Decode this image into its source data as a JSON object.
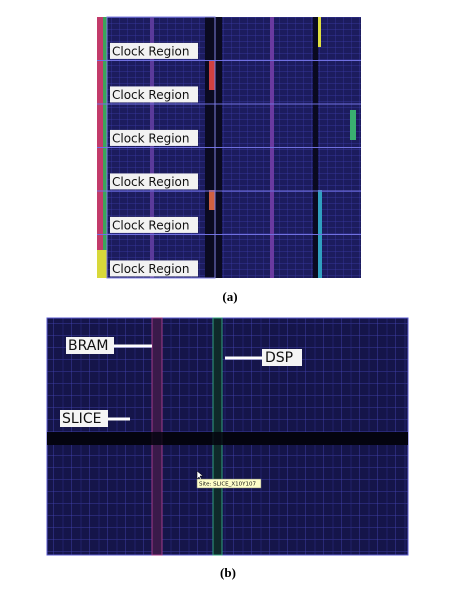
{
  "figure": {
    "panels": [
      {
        "labels": [
          "Clock Region",
          "Clock Region",
          "Clock Region",
          "Clock Region",
          "Clock Region",
          "Clock Region"
        ],
        "caption": "(a)"
      },
      {
        "labels": {
          "bram": "BRAM",
          "dsp": "DSP",
          "slice": "SLICE"
        },
        "tooltip": "Site: SLICE_X10Y107",
        "caption": "(b)"
      }
    ]
  }
}
